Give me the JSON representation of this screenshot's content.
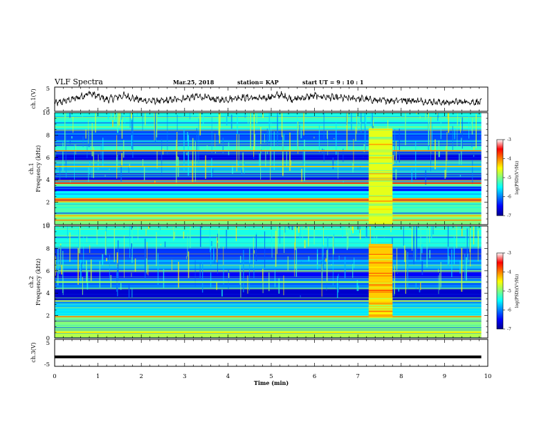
{
  "header": {
    "title": "VLF Spectra",
    "date": "Mar.25, 2018",
    "station": "station= KAP",
    "start_ut": "start  UT =   9 : 10 : 1"
  },
  "chart_data": [
    {
      "type": "line",
      "ylabel": "ch.1(V)",
      "ylim": [
        -5,
        5
      ],
      "y_ticks": [
        "5",
        "-5"
      ],
      "x_range_min": [
        0,
        9.85
      ],
      "trend": [
        {
          "t": 0.0,
          "v": -1.8
        },
        {
          "t": 0.5,
          "v": 0.4
        },
        {
          "t": 0.8,
          "v": 2.5
        },
        {
          "t": 1.2,
          "v": -0.2
        },
        {
          "t": 1.6,
          "v": 1.5
        },
        {
          "t": 2.0,
          "v": -0.5
        },
        {
          "t": 2.5,
          "v": -0.8
        },
        {
          "t": 3.0,
          "v": 0.3
        },
        {
          "t": 3.3,
          "v": 1.2
        },
        {
          "t": 3.8,
          "v": -0.4
        },
        {
          "t": 4.3,
          "v": 0.8
        },
        {
          "t": 4.8,
          "v": 0.2
        },
        {
          "t": 5.2,
          "v": 1.8
        },
        {
          "t": 5.5,
          "v": 0.0
        },
        {
          "t": 6.0,
          "v": 1.4
        },
        {
          "t": 6.5,
          "v": 0.5
        },
        {
          "t": 7.0,
          "v": 0.3
        },
        {
          "t": 7.5,
          "v": -0.6
        },
        {
          "t": 8.0,
          "v": -0.3
        },
        {
          "t": 8.5,
          "v": -0.8
        },
        {
          "t": 9.0,
          "v": -1.4
        },
        {
          "t": 9.5,
          "v": -1.0
        },
        {
          "t": 9.85,
          "v": -1.3
        }
      ],
      "line_color": "#000000"
    },
    {
      "type": "heatmap",
      "ylabel": "ch.1\nFrequency (kHz)",
      "ylim_khz": [
        0,
        10
      ],
      "y_ticks": [
        "0",
        "2",
        "4",
        "6",
        "8",
        "10"
      ],
      "data_extent_min": [
        0,
        9.85
      ],
      "colorbar": {
        "label": "log(PSD)(V²/Hz)",
        "range": [
          -7,
          -3
        ],
        "ticks": [
          "-3",
          "-4",
          "-5",
          "-6",
          "-7"
        ]
      },
      "bands": [
        {
          "from_khz": 0.0,
          "to_khz": 1.0,
          "log_psd": -5.0
        },
        {
          "from_khz": 1.0,
          "to_khz": 2.0,
          "log_psd": -5.2
        },
        {
          "from_khz": 2.0,
          "to_khz": 2.4,
          "log_psd": -4.2
        },
        {
          "from_khz": 2.4,
          "to_khz": 3.0,
          "log_psd": -5.5
        },
        {
          "from_khz": 3.0,
          "to_khz": 3.4,
          "log_psd": -6.5
        },
        {
          "from_khz": 3.4,
          "to_khz": 3.6,
          "log_psd": -5.5
        },
        {
          "from_khz": 3.6,
          "to_khz": 3.9,
          "log_psd": -4.2
        },
        {
          "from_khz": 3.9,
          "to_khz": 4.6,
          "log_psd": -6.6
        },
        {
          "from_khz": 4.6,
          "to_khz": 5.6,
          "log_psd": -5.8
        },
        {
          "from_khz": 5.6,
          "to_khz": 6.5,
          "log_psd": -6.6
        },
        {
          "from_khz": 6.5,
          "to_khz": 7.0,
          "log_psd": -5.3
        },
        {
          "from_khz": 7.0,
          "to_khz": 8.5,
          "log_psd": -6.2
        },
        {
          "from_khz": 8.5,
          "to_khz": 10.0,
          "log_psd": -5.4
        }
      ],
      "lines_khz": [
        {
          "f": 0.4,
          "log_psd": -4.0
        },
        {
          "f": 0.8,
          "log_psd": -4.2
        },
        {
          "f": 2.2,
          "log_psd": -3.6
        },
        {
          "f": 3.7,
          "log_psd": -3.6
        },
        {
          "f": 5.2,
          "log_psd": -4.3
        },
        {
          "f": 6.6,
          "log_psd": -4.0
        }
      ],
      "event": {
        "from_min": 7.25,
        "to_min": 7.8,
        "from_khz": 0.0,
        "to_khz": 8.6,
        "log_psd": -4.6
      }
    },
    {
      "type": "heatmap",
      "ylabel": "ch.2\nFrequency (kHz)",
      "ylim_khz": [
        0,
        10
      ],
      "y_ticks": [
        "0",
        "2",
        "4",
        "6",
        "8",
        "10"
      ],
      "data_extent_min": [
        0,
        9.85
      ],
      "colorbar": {
        "label": "log(PSD)(V²/Hz)",
        "range": [
          -7,
          -3
        ],
        "ticks": [
          "-3",
          "-4",
          "-5",
          "-6",
          "-7"
        ]
      },
      "bands": [
        {
          "from_khz": 0.0,
          "to_khz": 0.6,
          "log_psd": -4.8
        },
        {
          "from_khz": 0.6,
          "to_khz": 2.0,
          "log_psd": -5.0
        },
        {
          "from_khz": 2.0,
          "to_khz": 3.0,
          "log_psd": -5.6
        },
        {
          "from_khz": 3.0,
          "to_khz": 3.4,
          "log_psd": -6.0
        },
        {
          "from_khz": 3.4,
          "to_khz": 4.4,
          "log_psd": -6.7
        },
        {
          "from_khz": 4.4,
          "to_khz": 5.3,
          "log_psd": -6.0
        },
        {
          "from_khz": 5.3,
          "to_khz": 6.0,
          "log_psd": -6.5
        },
        {
          "from_khz": 6.0,
          "to_khz": 7.0,
          "log_psd": -5.8
        },
        {
          "from_khz": 7.0,
          "to_khz": 8.0,
          "log_psd": -6.3
        },
        {
          "from_khz": 8.0,
          "to_khz": 10.0,
          "log_psd": -5.4
        }
      ],
      "lines_khz": [
        {
          "f": 0.5,
          "log_psd": -4.4
        },
        {
          "f": 1.9,
          "log_psd": -4.0
        },
        {
          "f": 3.3,
          "log_psd": -4.6
        },
        {
          "f": 5.0,
          "log_psd": -4.8
        }
      ],
      "event": {
        "from_min": 7.25,
        "to_min": 7.8,
        "from_khz": 1.8,
        "to_khz": 8.4,
        "log_psd": -4.3
      }
    },
    {
      "type": "line",
      "ylabel": "ch.3(V)",
      "ylim": [
        -5,
        5
      ],
      "y_ticks": [
        "5",
        "-5"
      ],
      "x_range_min": [
        0,
        9.85
      ],
      "trend": [
        {
          "t": 0.0,
          "v": -1.5
        },
        {
          "t": 9.85,
          "v": -1.5
        }
      ],
      "line_color": "#000000"
    }
  ],
  "x_axis": {
    "label": "Time (min)",
    "xlim": [
      0,
      10
    ],
    "ticks": [
      "0",
      "1",
      "2",
      "3",
      "4",
      "5",
      "6",
      "7",
      "8",
      "9",
      "10"
    ]
  }
}
